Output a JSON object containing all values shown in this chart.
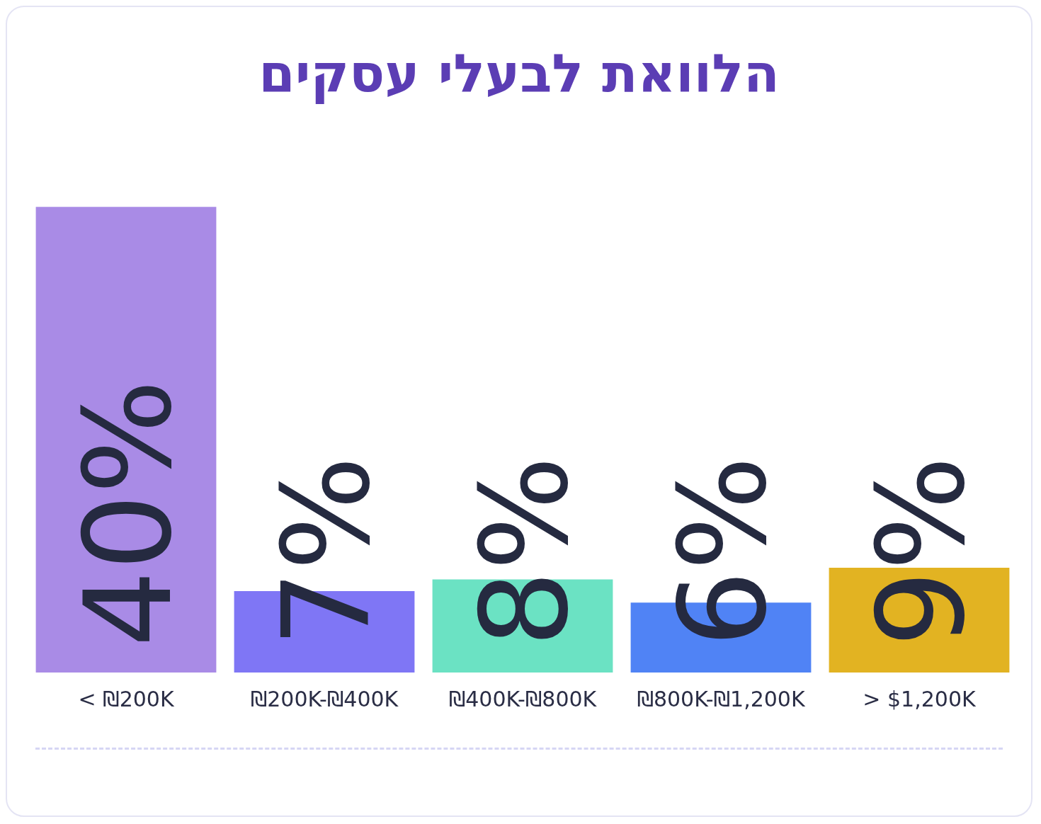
{
  "chart_data": {
    "type": "bar",
    "title": "הלוואת לבעלי עסקים",
    "categories": [
      "< ₪200K",
      "₪200K-₪400K",
      "₪400K-₪800K",
      "₪800K-₪1,200K",
      "> $1,200K"
    ],
    "values": [
      40,
      7,
      8,
      6,
      9
    ],
    "value_labels": [
      "40%",
      "7%",
      "8%",
      "6%",
      "9%"
    ],
    "colors": [
      "#a98be6",
      "#7f76f5",
      "#6be2c3",
      "#5083f5",
      "#e2b322"
    ],
    "grid": false,
    "legend": false
  }
}
